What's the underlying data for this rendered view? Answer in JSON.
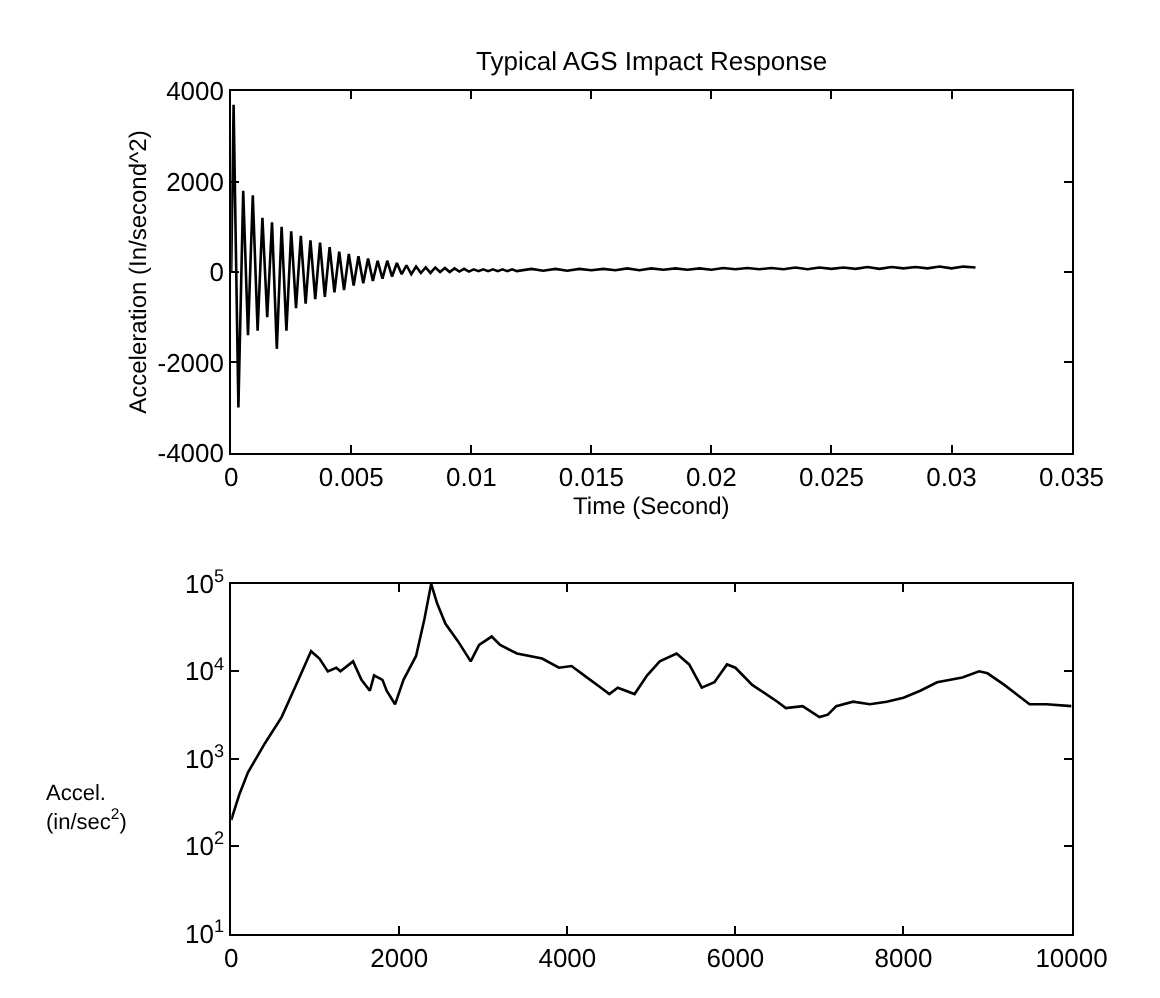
{
  "chart_data": [
    {
      "type": "line",
      "title": "Typical AGS Impact Response",
      "xlabel": "Time (Second)",
      "ylabel": "Acceleration (In/second^2)",
      "color": "#000000",
      "x": [
        0,
        0.0001,
        0.0003,
        0.0005,
        0.0007,
        0.0009,
        0.0011,
        0.0013,
        0.0015,
        0.0017,
        0.0019,
        0.0021,
        0.0023,
        0.0025,
        0.0027,
        0.0029,
        0.0031,
        0.0033,
        0.0035,
        0.0037,
        0.0039,
        0.0041,
        0.0043,
        0.0045,
        0.0047,
        0.0049,
        0.0051,
        0.0053,
        0.0055,
        0.0057,
        0.0059,
        0.0061,
        0.0063,
        0.0065,
        0.0067,
        0.0069,
        0.0071,
        0.0073,
        0.0075,
        0.0077,
        0.0079,
        0.0081,
        0.0083,
        0.0085,
        0.0087,
        0.0089,
        0.0091,
        0.0093,
        0.0095,
        0.0097,
        0.0099,
        0.0101,
        0.0103,
        0.0105,
        0.0107,
        0.0109,
        0.0111,
        0.0113,
        0.0115,
        0.0117,
        0.0119,
        0.0125,
        0.013,
        0.0135,
        0.014,
        0.0145,
        0.015,
        0.0155,
        0.016,
        0.0165,
        0.017,
        0.0175,
        0.018,
        0.0185,
        0.019,
        0.0195,
        0.02,
        0.0205,
        0.021,
        0.0215,
        0.022,
        0.0225,
        0.023,
        0.0235,
        0.024,
        0.0245,
        0.025,
        0.0255,
        0.026,
        0.0265,
        0.027,
        0.0275,
        0.028,
        0.0285,
        0.029,
        0.0295,
        0.03,
        0.0305,
        0.031
      ],
      "values": [
        0,
        3700,
        -3000,
        1800,
        -1400,
        1700,
        -1300,
        1200,
        -1000,
        1100,
        -1700,
        1000,
        -1300,
        900,
        -800,
        800,
        -700,
        700,
        -600,
        650,
        -550,
        550,
        -450,
        450,
        -400,
        400,
        -300,
        350,
        -250,
        300,
        -200,
        250,
        -150,
        250,
        -100,
        200,
        -50,
        150,
        -50,
        120,
        -20,
        100,
        -20,
        100,
        0,
        90,
        0,
        80,
        10,
        70,
        10,
        60,
        20,
        60,
        20,
        60,
        20,
        60,
        20,
        60,
        20,
        70,
        30,
        70,
        30,
        70,
        40,
        70,
        40,
        80,
        40,
        80,
        50,
        80,
        50,
        80,
        50,
        90,
        60,
        90,
        60,
        90,
        60,
        100,
        60,
        100,
        70,
        100,
        70,
        110,
        70,
        110,
        80,
        110,
        80,
        120,
        80,
        120,
        100
      ],
      "xlim": [
        0,
        0.035
      ],
      "ylim": [
        -4000,
        4000
      ],
      "xticks": [
        0,
        0.005,
        0.01,
        0.015,
        0.02,
        0.025,
        0.03,
        0.035
      ],
      "yticks": [
        -4000,
        -2000,
        0,
        2000,
        4000
      ]
    },
    {
      "type": "line",
      "ylabel": "Accel.\n(in/sec$^{2}$)",
      "color": "#000000",
      "log": "y",
      "x": [
        0,
        100,
        200,
        400,
        600,
        800,
        950,
        1050,
        1150,
        1250,
        1300,
        1450,
        1550,
        1650,
        1700,
        1800,
        1850,
        1950,
        2050,
        2200,
        2300,
        2380,
        2450,
        2550,
        2700,
        2850,
        2950,
        3100,
        3200,
        3400,
        3700,
        3900,
        4050,
        4200,
        4400,
        4500,
        4600,
        4800,
        4950,
        5100,
        5300,
        5450,
        5600,
        5750,
        5900,
        6000,
        6200,
        6500,
        6600,
        6800,
        7000,
        7100,
        7200,
        7400,
        7600,
        7800,
        8000,
        8200,
        8400,
        8700,
        8900,
        9000,
        9200,
        9500,
        9700,
        10000
      ],
      "values": [
        200,
        400,
        700,
        1500,
        3000,
        8000,
        17000,
        14000,
        10000,
        11000,
        10000,
        13000,
        8000,
        6000,
        9000,
        8000,
        6000,
        4200,
        8000,
        15000,
        40000,
        100000,
        60000,
        35000,
        22000,
        13000,
        20000,
        25000,
        20000,
        16000,
        14000,
        11000,
        11500,
        9000,
        6500,
        5500,
        6500,
        5500,
        9000,
        13000,
        16000,
        12000,
        6500,
        7500,
        12000,
        11000,
        7000,
        4500,
        3800,
        4000,
        3000,
        3200,
        4000,
        4500,
        4200,
        4500,
        5000,
        6000,
        7500,
        8500,
        10000,
        9500,
        7000,
        4200,
        4200,
        4000
      ],
      "xlim": [
        0,
        10000
      ],
      "ylim": [
        10,
        100000
      ],
      "xticks": [
        0,
        2000,
        4000,
        6000,
        8000,
        10000
      ],
      "yticks": [
        {
          "value": 10,
          "label": "10$^{1}$"
        },
        {
          "value": 100,
          "label": "10$^{2}$"
        },
        {
          "value": 1000,
          "label": "10$^{3}$"
        },
        {
          "value": 10000,
          "label": "10$^{4}$"
        },
        {
          "value": 100000,
          "label": "10$^{5}$"
        }
      ]
    }
  ]
}
